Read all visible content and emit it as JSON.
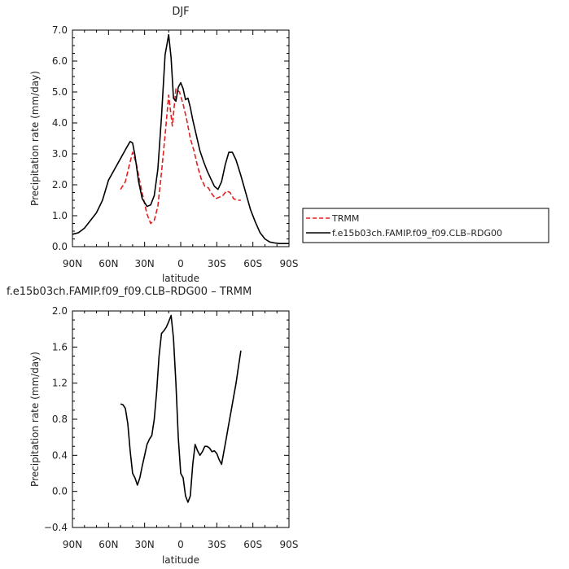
{
  "chart_data": [
    {
      "type": "line",
      "title": "DJF",
      "xlabel": "latitude",
      "ylabel": "Precipitation rate (mm/day)",
      "x_ticks": [
        "90N",
        "60N",
        "30N",
        "0",
        "30S",
        "60S",
        "90S"
      ],
      "y_ticks": [
        "0.0",
        "1.0",
        "2.0",
        "3.0",
        "4.0",
        "5.0",
        "6.0",
        "7.0"
      ],
      "xlim": [
        90,
        -90
      ],
      "ylim": [
        0,
        7
      ],
      "legend": "right",
      "series": [
        {
          "name": "TRMM",
          "color": "#e02020",
          "dash": "dashed",
          "x": [
            50,
            46,
            43,
            40,
            37,
            34,
            31,
            28,
            25,
            22,
            19,
            16,
            13,
            10,
            7,
            4,
            1,
            -2,
            -5,
            -8,
            -11,
            -14,
            -17,
            -20,
            -23,
            -26,
            -29,
            -32,
            -35,
            -38,
            -41,
            -44,
            -47,
            -50
          ],
          "y": [
            1.85,
            2.1,
            2.6,
            3.05,
            2.7,
            2.1,
            1.55,
            1.05,
            0.75,
            0.85,
            1.3,
            2.4,
            3.6,
            4.9,
            3.9,
            5.1,
            5.0,
            4.6,
            4.1,
            3.5,
            3.1,
            2.6,
            2.2,
            1.95,
            1.9,
            1.7,
            1.55,
            1.6,
            1.65,
            1.8,
            1.75,
            1.55,
            1.5,
            1.5
          ]
        },
        {
          "name": "f.e15b03ch.FAMIP.f09_f09.CLB–RDG00",
          "color": "#000000",
          "dash": "solid",
          "x": [
            90,
            85,
            80,
            75,
            70,
            65,
            60,
            55,
            50,
            45,
            42,
            40,
            38,
            35,
            32,
            28,
            25,
            22,
            19,
            16,
            13,
            10,
            8,
            6,
            4,
            2,
            0,
            -2,
            -4,
            -6,
            -8,
            -10,
            -13,
            -16,
            -19,
            -22,
            -25,
            -28,
            -31,
            -34,
            -37,
            -40,
            -43,
            -46,
            -50,
            -54,
            -58,
            -62,
            -66,
            -70,
            -74,
            -78,
            -82,
            -86,
            -90
          ],
          "y": [
            0.4,
            0.45,
            0.6,
            0.85,
            1.1,
            1.5,
            2.15,
            2.5,
            2.85,
            3.2,
            3.4,
            3.35,
            2.95,
            2.1,
            1.55,
            1.3,
            1.35,
            1.65,
            2.5,
            4.2,
            6.2,
            6.85,
            6.1,
            4.8,
            4.7,
            5.15,
            5.3,
            5.1,
            4.75,
            4.8,
            4.5,
            4.1,
            3.6,
            3.1,
            2.75,
            2.45,
            2.2,
            1.95,
            1.85,
            2.1,
            2.65,
            3.05,
            3.05,
            2.8,
            2.3,
            1.75,
            1.2,
            0.8,
            0.45,
            0.25,
            0.15,
            0.12,
            0.1,
            0.1,
            0.1
          ]
        }
      ]
    },
    {
      "type": "line",
      "title": "f.e15b03ch.FAMIP.f09_f09.CLB–RDG00 – TRMM",
      "xlabel": "latitude",
      "ylabel": "Precipitation rate (mm/day)",
      "x_ticks": [
        "90N",
        "60N",
        "30N",
        "0",
        "30S",
        "60S",
        "90S"
      ],
      "y_ticks": [
        "−0.4",
        "0.0",
        "0.4",
        "0.8",
        "1.2",
        "1.6",
        "2.0"
      ],
      "xlim": [
        90,
        -90
      ],
      "ylim": [
        -0.4,
        2.0
      ],
      "series": [
        {
          "color": "#000000",
          "dash": "solid",
          "x": [
            50,
            48,
            46,
            44,
            42,
            40,
            38,
            36,
            34,
            32,
            30,
            28,
            26,
            24,
            22,
            20,
            18,
            16,
            14,
            12,
            10,
            8,
            6,
            4,
            2,
            0,
            -2,
            -4,
            -6,
            -8,
            -10,
            -12,
            -14,
            -16,
            -18,
            -20,
            -22,
            -24,
            -26,
            -28,
            -30,
            -32,
            -34,
            -36,
            -38,
            -40,
            -42,
            -44,
            -46,
            -48,
            -50
          ],
          "y": [
            0.97,
            0.96,
            0.92,
            0.75,
            0.45,
            0.2,
            0.15,
            0.07,
            0.15,
            0.28,
            0.4,
            0.52,
            0.58,
            0.62,
            0.8,
            1.1,
            1.5,
            1.75,
            1.78,
            1.82,
            1.88,
            1.95,
            1.7,
            1.2,
            0.6,
            0.2,
            0.15,
            -0.05,
            -0.12,
            -0.05,
            0.3,
            0.52,
            0.45,
            0.4,
            0.44,
            0.5,
            0.5,
            0.48,
            0.44,
            0.45,
            0.42,
            0.35,
            0.3,
            0.45,
            0.6,
            0.75,
            0.9,
            1.05,
            1.2,
            1.38,
            1.56
          ]
        }
      ]
    }
  ]
}
